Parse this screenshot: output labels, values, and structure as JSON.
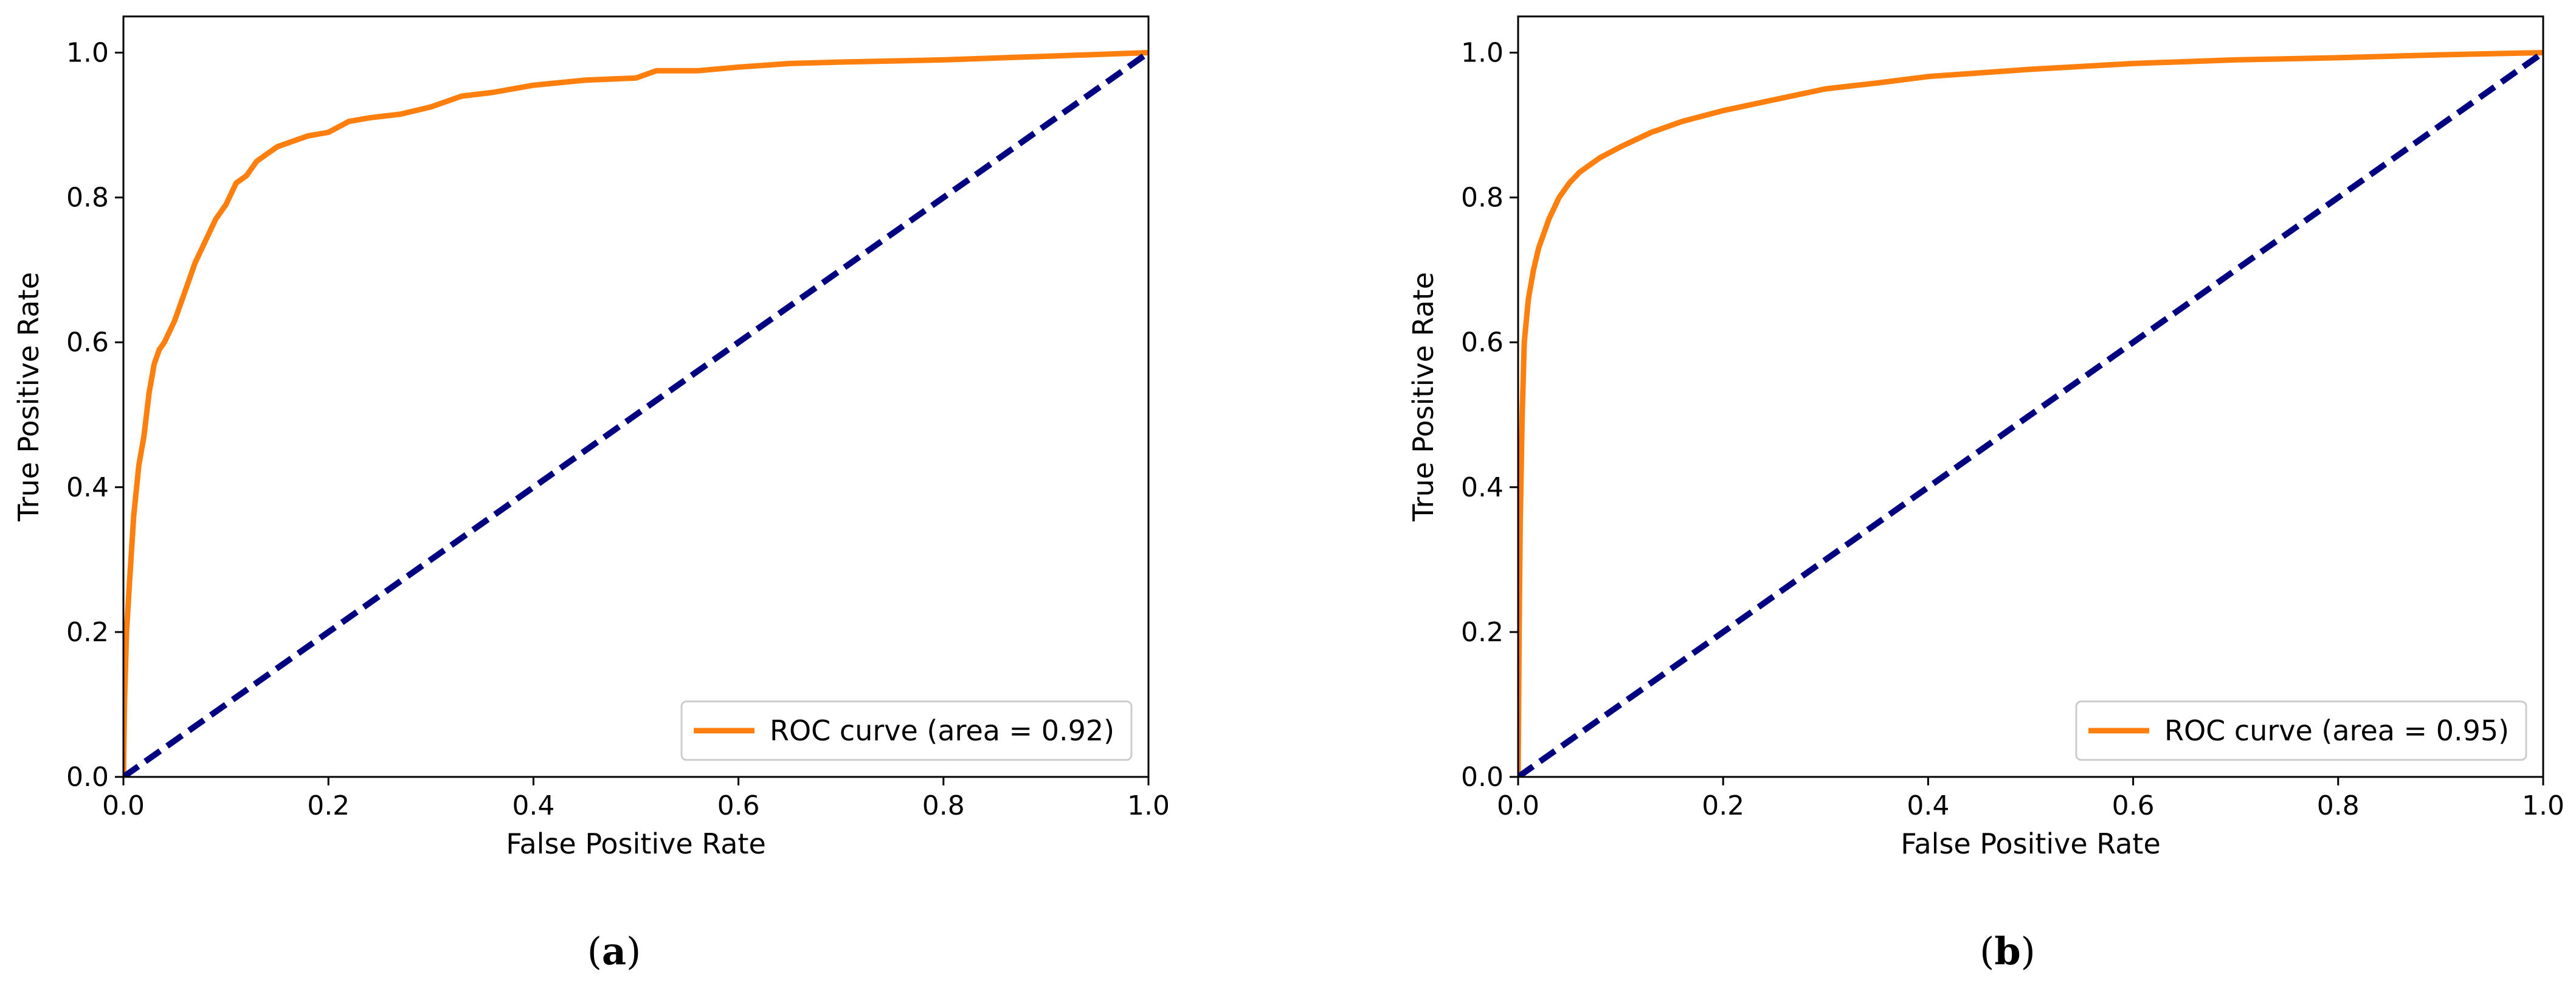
{
  "chart_data": [
    {
      "type": "line",
      "caption_letter": "a",
      "caption_open": "(",
      "caption_close": ")",
      "xlabel": "False Positive Rate",
      "ylabel": "True Positive Rate",
      "xlim": [
        0.0,
        1.0
      ],
      "ylim": [
        0.0,
        1.05
      ],
      "xticks": [
        "0.0",
        "0.2",
        "0.4",
        "0.6",
        "0.8",
        "1.0"
      ],
      "yticks": [
        "0.0",
        "0.2",
        "0.4",
        "0.6",
        "0.8",
        "1.0"
      ],
      "legend_position": "lower-right",
      "series": [
        {
          "name": "ROC curve (area = 0.92)",
          "color": "#ff7f0e",
          "style": "solid",
          "x": [
            0.0,
            0.001,
            0.003,
            0.006,
            0.01,
            0.015,
            0.02,
            0.025,
            0.03,
            0.035,
            0.04,
            0.05,
            0.06,
            0.07,
            0.08,
            0.09,
            0.1,
            0.11,
            0.12,
            0.13,
            0.14,
            0.15,
            0.16,
            0.17,
            0.18,
            0.2,
            0.22,
            0.24,
            0.27,
            0.3,
            0.33,
            0.36,
            0.4,
            0.45,
            0.5,
            0.52,
            0.56,
            0.6,
            0.65,
            0.7,
            0.8,
            0.9,
            1.0
          ],
          "y": [
            0.0,
            0.1,
            0.2,
            0.27,
            0.36,
            0.43,
            0.47,
            0.53,
            0.57,
            0.59,
            0.6,
            0.63,
            0.67,
            0.71,
            0.74,
            0.77,
            0.79,
            0.82,
            0.83,
            0.85,
            0.86,
            0.87,
            0.875,
            0.88,
            0.885,
            0.89,
            0.905,
            0.91,
            0.915,
            0.925,
            0.94,
            0.945,
            0.955,
            0.962,
            0.965,
            0.975,
            0.975,
            0.98,
            0.985,
            0.987,
            0.99,
            0.995,
            1.0
          ]
        },
        {
          "name": "diagonal",
          "color": "#000080",
          "style": "dashed",
          "x": [
            0.0,
            1.0
          ],
          "y": [
            0.0,
            1.0
          ]
        }
      ]
    },
    {
      "type": "line",
      "caption_letter": "b",
      "caption_open": "(",
      "caption_close": ")",
      "xlabel": "False Positive Rate",
      "ylabel": "True Positive Rate",
      "xlim": [
        0.0,
        1.0
      ],
      "ylim": [
        0.0,
        1.05
      ],
      "xticks": [
        "0.0",
        "0.2",
        "0.4",
        "0.6",
        "0.8",
        "1.0"
      ],
      "yticks": [
        "0.0",
        "0.2",
        "0.4",
        "0.6",
        "0.8",
        "1.0"
      ],
      "legend_position": "lower-right",
      "series": [
        {
          "name": "ROC curve (area = 0.95)",
          "color": "#ff7f0e",
          "style": "solid",
          "x": [
            0.0,
            0.001,
            0.002,
            0.004,
            0.006,
            0.01,
            0.015,
            0.02,
            0.03,
            0.04,
            0.05,
            0.06,
            0.08,
            0.1,
            0.13,
            0.16,
            0.2,
            0.25,
            0.3,
            0.35,
            0.4,
            0.5,
            0.6,
            0.7,
            0.8,
            0.9,
            1.0
          ],
          "y": [
            0.0,
            0.2,
            0.35,
            0.5,
            0.6,
            0.66,
            0.7,
            0.73,
            0.77,
            0.8,
            0.82,
            0.835,
            0.855,
            0.87,
            0.89,
            0.905,
            0.92,
            0.935,
            0.95,
            0.958,
            0.967,
            0.977,
            0.985,
            0.99,
            0.993,
            0.997,
            1.0
          ]
        },
        {
          "name": "diagonal",
          "color": "#000080",
          "style": "dashed",
          "x": [
            0.0,
            1.0
          ],
          "y": [
            0.0,
            1.0
          ]
        }
      ]
    }
  ]
}
